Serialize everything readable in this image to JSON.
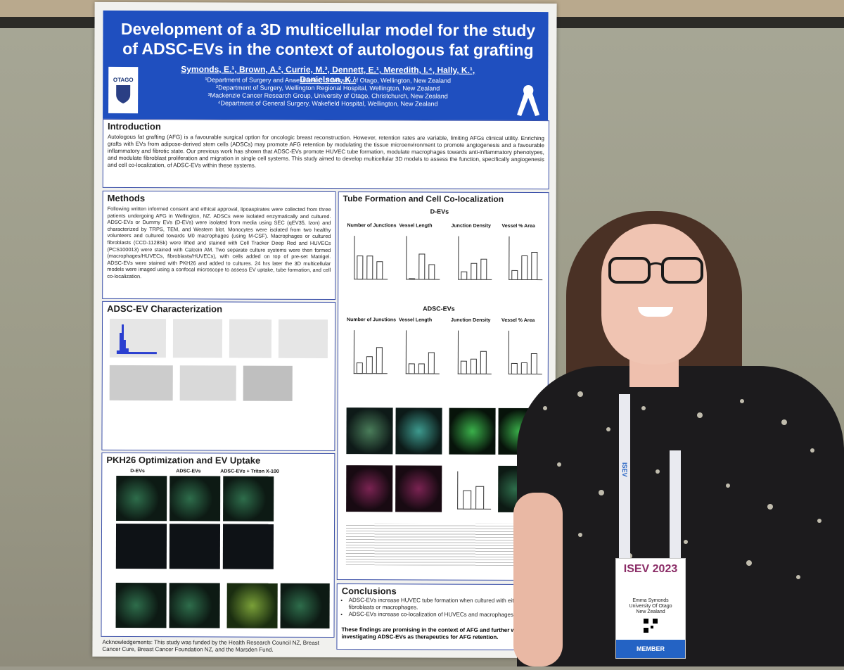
{
  "poster": {
    "title": "Development of a 3D multicellular model for the study of ADSC-EVs in the context of autologous fat grafting",
    "authors": "Symonds, E.¹, Brown, A.², Currie, M.³, Dennett, E.¹, Meredith, I.⁴, Hally, K.¹, Danielson, K.¹",
    "affiliations": [
      "¹Department of Surgery and Anaesthesia, University of Otago, Wellington, New Zealand",
      "²Department of Surgery, Wellington Regional Hospital, Wellington, New Zealand",
      "³Mackenzie Cancer Research Group, University of Otago, Christchurch, New Zealand",
      "⁴Department of General Surgery, Wakefield Hospital, Wellington, New Zealand"
    ],
    "logo_text": "OTAGO",
    "intro": {
      "title": "Introduction",
      "body": "Autologous fat grafting (AFG) is a favourable surgical option for oncologic breast reconstruction. However, retention rates are variable, limiting AFGs clinical utility. Enriching grafts with EVs from adipose-derived stem cells (ADSCs) may promote AFG retention by modulating the tissue microenvironment to promote angiogenesis and a favourable inflammatory and fibrotic state. Our previous work has shown that ADSC-EVs promote HUVEC tube formation, modulate macrophages towards anti-inflammatory phenotypes, and modulate fibroblast proliferation and migration in single cell systems. This study aimed to develop multicellular 3D models to assess the function, specifically angiogenesis and cell co-localization, of ADSC-EVs within these systems."
    },
    "methods": {
      "title": "Methods",
      "body": "Following written informed consent and ethical approval, lipoaspirates were collected from three patients undergoing AFG in Wellington, NZ. ADSCs were isolated enzymatically and cultured. ADSC-EVs or Dummy EVs (D-EVs) were isolated from media using SEC (qEV35, Izon) and characterized by TRPS, TEM, and Western blot. Monocytes were isolated from two healthy volunteers and cultured towards M0 macrophages (using M-CSF). Macrophages or cultured fibroblasts (CCD-1128Sk) were lifted and stained with Cell Tracker Deep Red and HUVECs (PCS100013) were stained with Calcein AM. Two separate culture systems were then formed (macrophages/HUVECs, fibroblasts/HUVECs), with cells added on top of pre-set Matrigel. ADSC-EVs were stained with PKH26 and added to cultures. 24 hrs later the 3D multicellular models were imaged using a confocal microscope to assess EV uptake, tube formation, and cell co-localization."
    },
    "characterization": {
      "title": "ADSC-EV Characterization"
    },
    "pkh26": {
      "title": "PKH26 Optimization and EV Uptake",
      "cols": [
        "D-EVs",
        "ADSC-EVs",
        "ADSC-EVs + Triton X-100"
      ]
    },
    "tube": {
      "title": "Tube Formation and Cell Co-localization",
      "group1": "D-EVs",
      "group2": "ADSC-EVs",
      "charts": [
        "Number of Junctions",
        "Vessel Length",
        "Junction Density",
        "Vessel % Area"
      ]
    },
    "conclusions": {
      "title": "Conclusions",
      "items": [
        "ADSC-EVs increase HUVEC tube formation when cultured with either fibroblasts or macrophages.",
        "ADSC-EVs increase co-localization of HUVECs and macrophages."
      ],
      "closing": "These findings are promising in the context of AFG and further work investigating ADSC-EVs as therapeutics for AFG retention."
    },
    "acknowledgements": "Acknowledgements: This study was funded by the Health Research Council NZ, Breast Cancer Cure, Breast Cancer Foundation NZ, and the Marsden Fund."
  },
  "badge": {
    "event": "ISEV 2023",
    "name": "Emma Symonds",
    "org": "University Of Otago",
    "country": "New Zealand",
    "role": "MEMBER",
    "lanyard_text": "ISEV"
  }
}
